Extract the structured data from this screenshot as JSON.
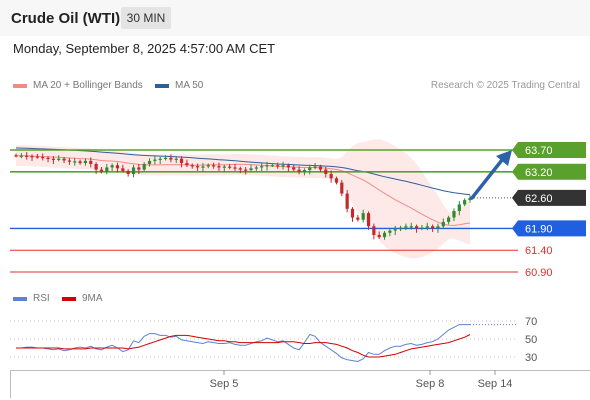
{
  "header": {
    "title": "Crude Oil (WTI)",
    "interval": "30 MIN"
  },
  "datetime": "Monday, September 8, 2025 4:57:00 AM CET",
  "legend": {
    "ma20": "MA 20 + Bollinger Bands",
    "ma50": "MA 50",
    "credit": "Research © 2025 Trading Central",
    "rsi": "RSI",
    "ma9": "9MA",
    "colors": {
      "ma20": "#f08c84",
      "ma50": "#2e5f99",
      "rsi": "#5b83d6",
      "ma9": "#d40000"
    }
  },
  "chart_data": {
    "type": "candlestick",
    "price_levels": [
      {
        "label": "63.70",
        "value": 63.7,
        "kind": "resistance",
        "color": "#5aa02c"
      },
      {
        "label": "63.20",
        "value": 63.2,
        "kind": "resistance",
        "color": "#5aa02c"
      },
      {
        "label": "62.60",
        "value": 62.6,
        "kind": "last",
        "color": "#333333"
      },
      {
        "label": "61.90",
        "value": 61.9,
        "kind": "pivot",
        "color": "#1f5fe0"
      },
      {
        "label": "61.40",
        "value": 61.4,
        "kind": "support",
        "color": "#e03030"
      },
      {
        "label": "60.90",
        "value": 60.9,
        "kind": "support",
        "color": "#e03030"
      }
    ],
    "x_ticks": [
      "Sep 5",
      "Sep 8",
      "Sep 14"
    ],
    "rsi_ticks": [
      70,
      50,
      30
    ],
    "rsi_ylim": [
      20,
      80
    ],
    "close": [
      63.57,
      63.57,
      63.56,
      63.55,
      63.54,
      63.52,
      63.5,
      63.48,
      63.5,
      63.46,
      63.44,
      63.44,
      63.4,
      63.45,
      63.38,
      63.25,
      63.2,
      63.3,
      63.35,
      63.28,
      63.22,
      63.15,
      63.3,
      63.25,
      63.38,
      63.45,
      63.48,
      63.5,
      63.52,
      63.48,
      63.5,
      63.4,
      63.35,
      63.33,
      63.3,
      63.32,
      63.35,
      63.33,
      63.3,
      63.32,
      63.3,
      63.28,
      63.25,
      63.24,
      63.28,
      63.3,
      63.33,
      63.35,
      63.35,
      63.33,
      63.35,
      63.3,
      63.25,
      63.2,
      63.24,
      63.3,
      63.32,
      63.25,
      63.15,
      63.05,
      62.95,
      62.7,
      62.35,
      62.15,
      62.1,
      62.25,
      61.95,
      61.75,
      61.7,
      61.8,
      61.85,
      61.88,
      61.92,
      61.95,
      61.95,
      61.9,
      61.92,
      61.95,
      61.9,
      61.95,
      62.05,
      62.15,
      62.3,
      62.45,
      62.55,
      62.6
    ],
    "rsi": [
      40,
      40,
      41,
      41,
      40,
      40,
      39,
      38,
      39,
      37,
      38,
      40,
      41,
      40,
      42,
      39,
      38,
      41,
      43,
      40,
      36,
      38,
      48,
      46,
      53,
      56,
      56,
      54,
      54,
      52,
      53,
      49,
      48,
      47,
      46,
      45,
      47,
      46,
      45,
      45,
      46,
      44,
      43,
      43,
      45,
      47,
      48,
      51,
      49,
      47,
      48,
      44,
      40,
      38,
      46,
      55,
      53,
      46,
      42,
      38,
      34,
      29,
      27,
      26,
      25,
      28,
      35,
      33,
      33,
      37,
      40,
      42,
      42,
      44,
      45,
      43,
      44,
      46,
      47,
      50,
      55,
      60,
      63,
      66,
      66,
      66
    ],
    "ma9": [
      40,
      40,
      40,
      40,
      40,
      40,
      40,
      40,
      40,
      39,
      39,
      39,
      39,
      39,
      40,
      40,
      40,
      40,
      40,
      40,
      40,
      39,
      40,
      41,
      43,
      45,
      47,
      49,
      51,
      53,
      54,
      54,
      54,
      53,
      52,
      51,
      50,
      49,
      48,
      48,
      47,
      47,
      46,
      46,
      46,
      46,
      46,
      46,
      46,
      46,
      47,
      47,
      47,
      46,
      45,
      45,
      46,
      46,
      46,
      45,
      44,
      42,
      40,
      37,
      35,
      32,
      30,
      30,
      30,
      31,
      32,
      33,
      35,
      37,
      39,
      40,
      41,
      42,
      43,
      44,
      45,
      46,
      48,
      50,
      52,
      55
    ]
  }
}
